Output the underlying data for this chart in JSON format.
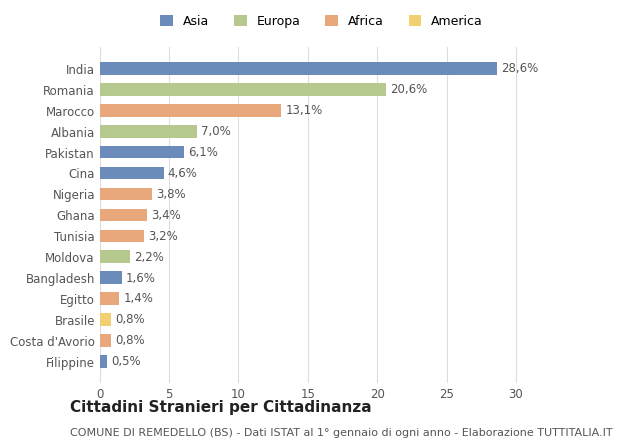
{
  "countries": [
    "India",
    "Romania",
    "Marocco",
    "Albania",
    "Pakistan",
    "Cina",
    "Nigeria",
    "Ghana",
    "Tunisia",
    "Moldova",
    "Bangladesh",
    "Egitto",
    "Brasile",
    "Costa d'Avorio",
    "Filippine"
  ],
  "values": [
    28.6,
    20.6,
    13.1,
    7.0,
    6.1,
    4.6,
    3.8,
    3.4,
    3.2,
    2.2,
    1.6,
    1.4,
    0.8,
    0.8,
    0.5
  ],
  "labels": [
    "28,6%",
    "20,6%",
    "13,1%",
    "7,0%",
    "6,1%",
    "4,6%",
    "3,8%",
    "3,4%",
    "3,2%",
    "2,2%",
    "1,6%",
    "1,4%",
    "0,8%",
    "0,8%",
    "0,5%"
  ],
  "continents": [
    "Asia",
    "Europa",
    "Africa",
    "Europa",
    "Asia",
    "Asia",
    "Africa",
    "Africa",
    "Africa",
    "Europa",
    "Asia",
    "Africa",
    "America",
    "Africa",
    "Asia"
  ],
  "colors": {
    "Asia": "#6b8cba",
    "Europa": "#b5c98e",
    "Africa": "#e8a87c",
    "America": "#f0d070"
  },
  "legend_colors": {
    "Asia": "#6b8cba",
    "Europa": "#b5c98e",
    "Africa": "#e8a87c",
    "America": "#f0d070"
  },
  "legend_order": [
    "Asia",
    "Europa",
    "Africa",
    "America"
  ],
  "title": "Cittadini Stranieri per Cittadinanza",
  "subtitle": "COMUNE DI REMEDELLO (BS) - Dati ISTAT al 1° gennaio di ogni anno - Elaborazione TUTTITALIA.IT",
  "xlim": [
    0,
    32
  ],
  "background_color": "#ffffff",
  "grid_color": "#dddddd",
  "bar_height": 0.6,
  "title_fontsize": 11,
  "subtitle_fontsize": 8,
  "tick_fontsize": 8.5,
  "label_fontsize": 8.5,
  "legend_fontsize": 9
}
